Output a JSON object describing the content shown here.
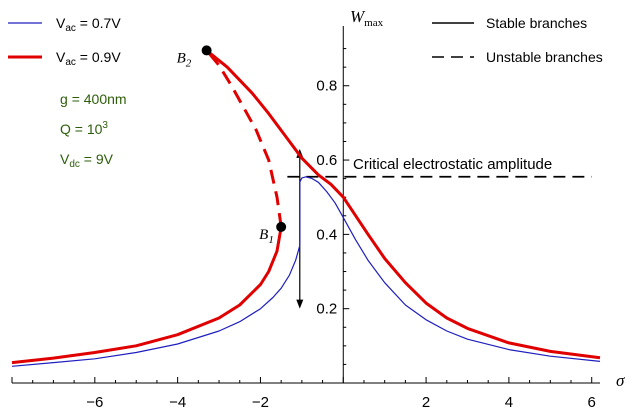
{
  "chart_data": {
    "type": "line",
    "xlabel": "σ",
    "ylabel": "W_max",
    "xlim": [
      -8,
      6.2
    ],
    "ylim": [
      0,
      0.95
    ],
    "x_ticks": [
      -6,
      -4,
      -2,
      2,
      4,
      6
    ],
    "y_ticks": [
      0.2,
      0.4,
      0.6,
      0.8
    ],
    "grid": false,
    "legend_left": [
      {
        "label": "V_ac = 0.7V",
        "color": "#1f1fbf",
        "style": "solid-thin"
      },
      {
        "label": "V_ac = 0.9V",
        "color": "#e00000",
        "style": "solid-thick"
      }
    ],
    "legend_right": [
      {
        "label": "Stable branches",
        "style": "solid"
      },
      {
        "label": "Unstable branches",
        "style": "dashed"
      }
    ],
    "parameters": [
      {
        "name": "g",
        "value": "= 400nm"
      },
      {
        "name": "Q",
        "value": "= 10",
        "sup": "3"
      },
      {
        "name": "V",
        "sub": "dc",
        "value": "= 9V"
      }
    ],
    "annotations": {
      "critical_label": "Critical electrostatic amplitude",
      "critical_y": 0.555,
      "B1": {
        "label": "B",
        "sub": "1",
        "x": -1.5,
        "y": 0.42
      },
      "B2": {
        "label": "B",
        "sub": "2",
        "x": -3.3,
        "y": 0.895
      },
      "jump_x": -1.05,
      "jump_y": [
        0.2,
        0.63
      ]
    },
    "series": [
      {
        "name": "V_ac = 0.7V",
        "color": "#1f1fbf",
        "stable": true,
        "x": [
          -8,
          -7,
          -6,
          -5,
          -4,
          -3,
          -2.5,
          -2,
          -1.7,
          -1.5,
          -1.3,
          -1.15,
          -1.05,
          -1.05,
          -1.0,
          -0.9,
          -0.75,
          -0.6,
          -0.4,
          -0.2,
          0,
          0.3,
          0.6,
          1,
          1.5,
          2,
          2.5,
          3,
          4,
          5,
          6.2
        ],
        "y": [
          0.045,
          0.055,
          0.065,
          0.082,
          0.105,
          0.14,
          0.165,
          0.2,
          0.23,
          0.255,
          0.29,
          0.33,
          0.37,
          0.54,
          0.552,
          0.555,
          0.55,
          0.54,
          0.515,
          0.485,
          0.445,
          0.385,
          0.33,
          0.27,
          0.21,
          0.17,
          0.14,
          0.118,
          0.09,
          0.072,
          0.058
        ]
      },
      {
        "name": "V_ac = 0.9V",
        "color": "#e00000",
        "stable": true,
        "x": [
          -8,
          -7,
          -6,
          -5,
          -4,
          -3,
          -2.5,
          -2,
          -1.8,
          -1.6,
          -1.5
        ],
        "y": [
          0.055,
          0.067,
          0.082,
          0.1,
          0.13,
          0.175,
          0.21,
          0.265,
          0.3,
          0.355,
          0.42
        ]
      },
      {
        "name": "V_ac = 0.9V (unstable)",
        "color": "#e00000",
        "stable": false,
        "x": [
          -1.5,
          -1.6,
          -1.8,
          -2.1,
          -2.4,
          -2.7,
          -3.0,
          -3.3
        ],
        "y": [
          0.42,
          0.5,
          0.6,
          0.68,
          0.74,
          0.8,
          0.855,
          0.895
        ]
      },
      {
        "name": "V_ac = 0.9V (upper)",
        "color": "#e00000",
        "stable": true,
        "x": [
          -3.3,
          -2.8,
          -2.2,
          -1.8,
          -1.4,
          -1.0,
          -0.6,
          -0.3,
          0,
          0.3,
          0.6,
          1,
          1.5,
          2,
          2.5,
          3,
          4,
          5,
          6.2
        ],
        "y": [
          0.895,
          0.85,
          0.78,
          0.725,
          0.665,
          0.605,
          0.56,
          0.535,
          0.5,
          0.45,
          0.4,
          0.335,
          0.27,
          0.215,
          0.175,
          0.147,
          0.108,
          0.085,
          0.068
        ]
      }
    ]
  }
}
